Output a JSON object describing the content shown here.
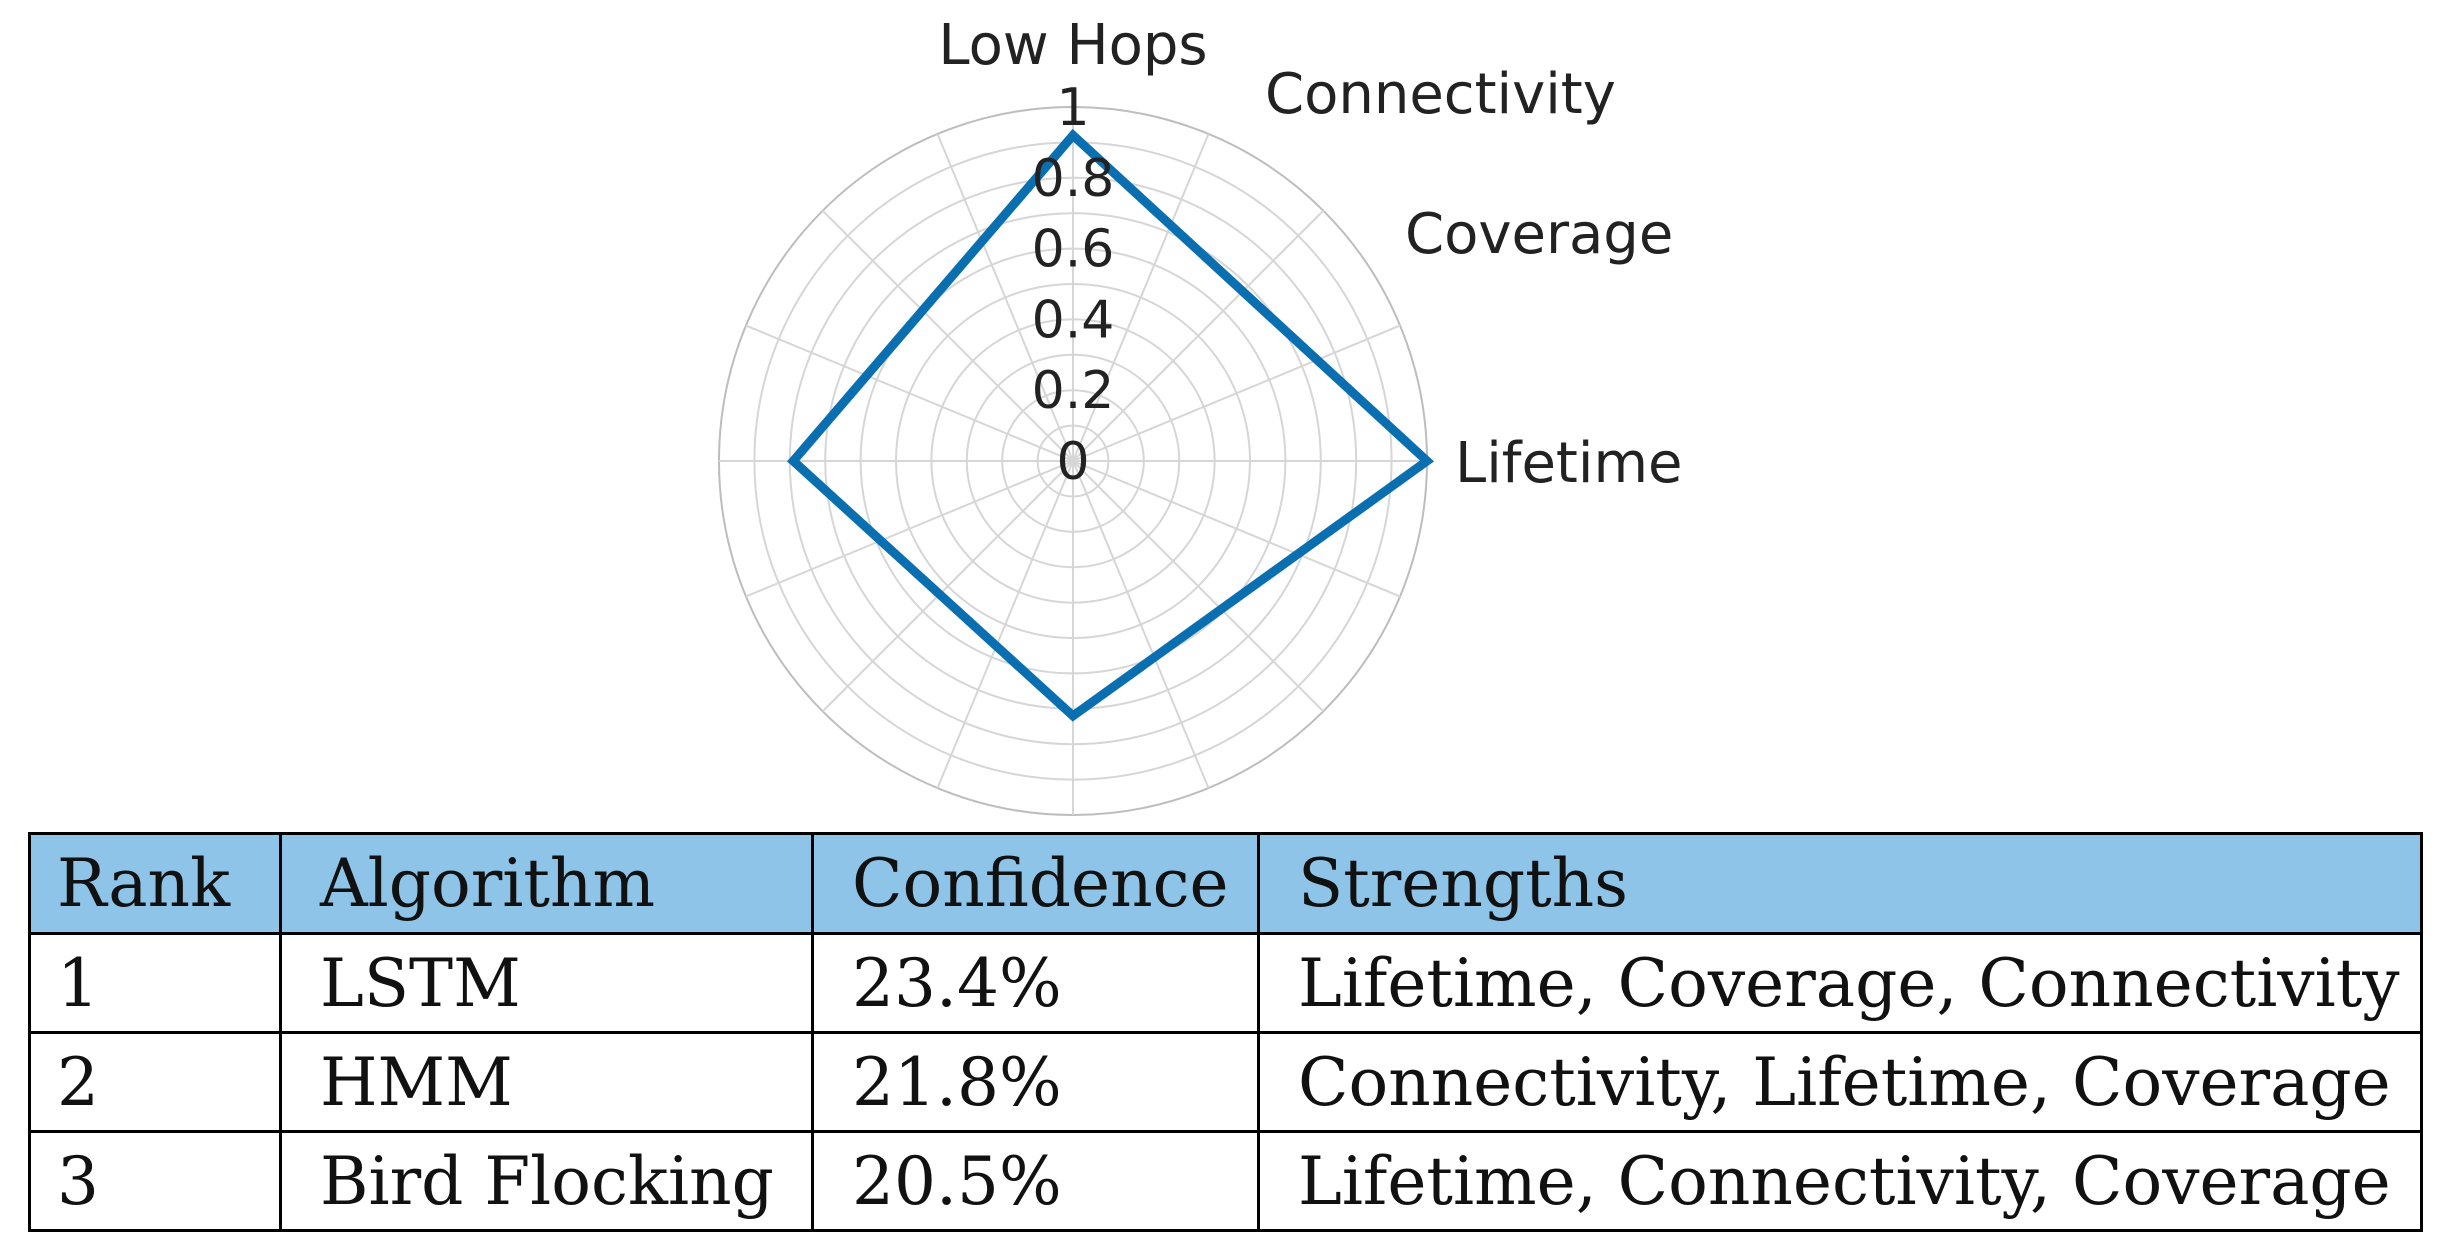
{
  "chart_data": [
    {
      "type": "radar",
      "axes": [
        "Lifetime",
        "Coverage",
        "Connectivity",
        "Low Hops"
      ],
      "ticks": [
        "0",
        "0.2",
        "0.4",
        "0.6",
        "0.8",
        "1"
      ],
      "rlim": [
        0,
        1
      ],
      "ring_step": 0.1,
      "spoke_count": 16,
      "grid": true,
      "series": [
        {
          "color": "#0a6fb0",
          "values": [
            1.0,
            0.92,
            0.79,
            0.72
          ]
        }
      ]
    },
    {
      "type": "table",
      "columns": [
        "Rank",
        "Algorithm",
        "Confidence",
        "Strengths"
      ],
      "rows": [
        [
          "1",
          "LSTM",
          "23.4%",
          "Lifetime, Coverage, Connectivity"
        ],
        [
          "2",
          "HMM",
          "21.8%",
          "Connectivity, Lifetime, Coverage"
        ],
        [
          "3",
          "Bird Flocking",
          "20.5%",
          "Lifetime, Connectivity, Coverage"
        ]
      ],
      "header_color": "#8dc4e8"
    }
  ]
}
